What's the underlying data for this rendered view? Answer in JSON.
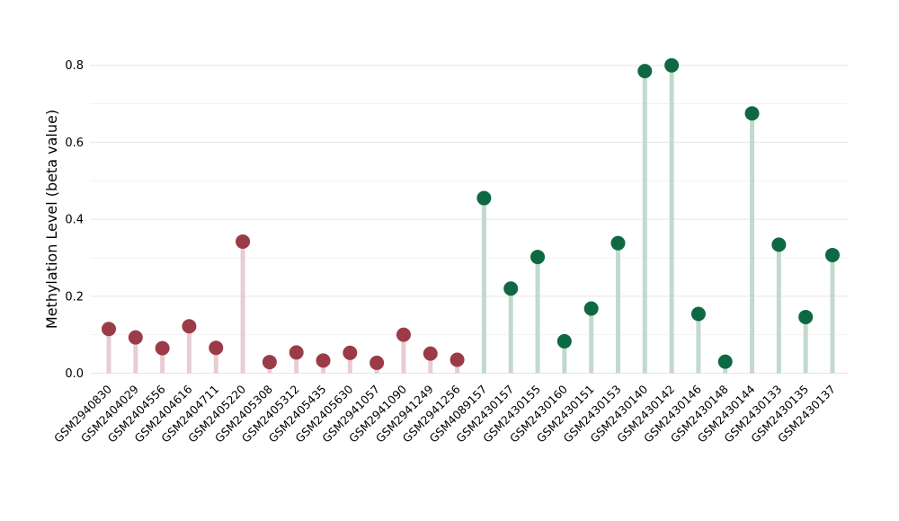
{
  "chart_data": {
    "type": "scatter",
    "style": "lollipop",
    "title": "",
    "xlabel": "",
    "ylabel": "Methylation Level (beta value)",
    "ylim": [
      0,
      0.84
    ],
    "yticks": [
      0.0,
      0.2,
      0.4,
      0.6,
      0.8
    ],
    "minor_gridlines": [
      0.1,
      0.3,
      0.5,
      0.7
    ],
    "grid": true,
    "legend": false,
    "colors": {
      "major_gridline": "#e6e6e6",
      "minor_gridline": "#f2f2f2",
      "axis_text": "#000000"
    },
    "groups": [
      {
        "name": "group-red",
        "dot_color": "#9c3b48",
        "stem_color": "#e8cdd2"
      },
      {
        "name": "group-green",
        "dot_color": "#0e6943",
        "stem_color": "#c3d9ce"
      }
    ],
    "points": [
      {
        "label": "GSM2940830",
        "value": 0.115,
        "group": 0
      },
      {
        "label": "GSM2404029",
        "value": 0.093,
        "group": 0
      },
      {
        "label": "GSM2404556",
        "value": 0.065,
        "group": 0
      },
      {
        "label": "GSM2404616",
        "value": 0.122,
        "group": 0
      },
      {
        "label": "GSM2404711",
        "value": 0.066,
        "group": 0
      },
      {
        "label": "GSM2405220",
        "value": 0.342,
        "group": 0
      },
      {
        "label": "GSM2405308",
        "value": 0.029,
        "group": 0
      },
      {
        "label": "GSM2405312",
        "value": 0.054,
        "group": 0
      },
      {
        "label": "GSM2405435",
        "value": 0.033,
        "group": 0
      },
      {
        "label": "GSM2405630",
        "value": 0.053,
        "group": 0
      },
      {
        "label": "GSM2941057",
        "value": 0.027,
        "group": 0
      },
      {
        "label": "GSM2941090",
        "value": 0.1,
        "group": 0
      },
      {
        "label": "GSM2941249",
        "value": 0.051,
        "group": 0
      },
      {
        "label": "GSM2941256",
        "value": 0.035,
        "group": 0
      },
      {
        "label": "GSM4089157",
        "value": 0.455,
        "group": 1
      },
      {
        "label": "GSM2430157",
        "value": 0.22,
        "group": 1
      },
      {
        "label": "GSM2430155",
        "value": 0.302,
        "group": 1
      },
      {
        "label": "GSM2430160",
        "value": 0.083,
        "group": 1
      },
      {
        "label": "GSM2430151",
        "value": 0.168,
        "group": 1
      },
      {
        "label": "GSM2430153",
        "value": 0.338,
        "group": 1
      },
      {
        "label": "GSM2430140",
        "value": 0.785,
        "group": 1
      },
      {
        "label": "GSM2430142",
        "value": 0.8,
        "group": 1
      },
      {
        "label": "GSM2430146",
        "value": 0.154,
        "group": 1
      },
      {
        "label": "GSM2430148",
        "value": 0.03,
        "group": 1
      },
      {
        "label": "GSM2430144",
        "value": 0.675,
        "group": 1
      },
      {
        "label": "GSM2430133",
        "value": 0.334,
        "group": 1
      },
      {
        "label": "GSM2430135",
        "value": 0.146,
        "group": 1
      },
      {
        "label": "GSM2430137",
        "value": 0.307,
        "group": 1
      }
    ]
  }
}
